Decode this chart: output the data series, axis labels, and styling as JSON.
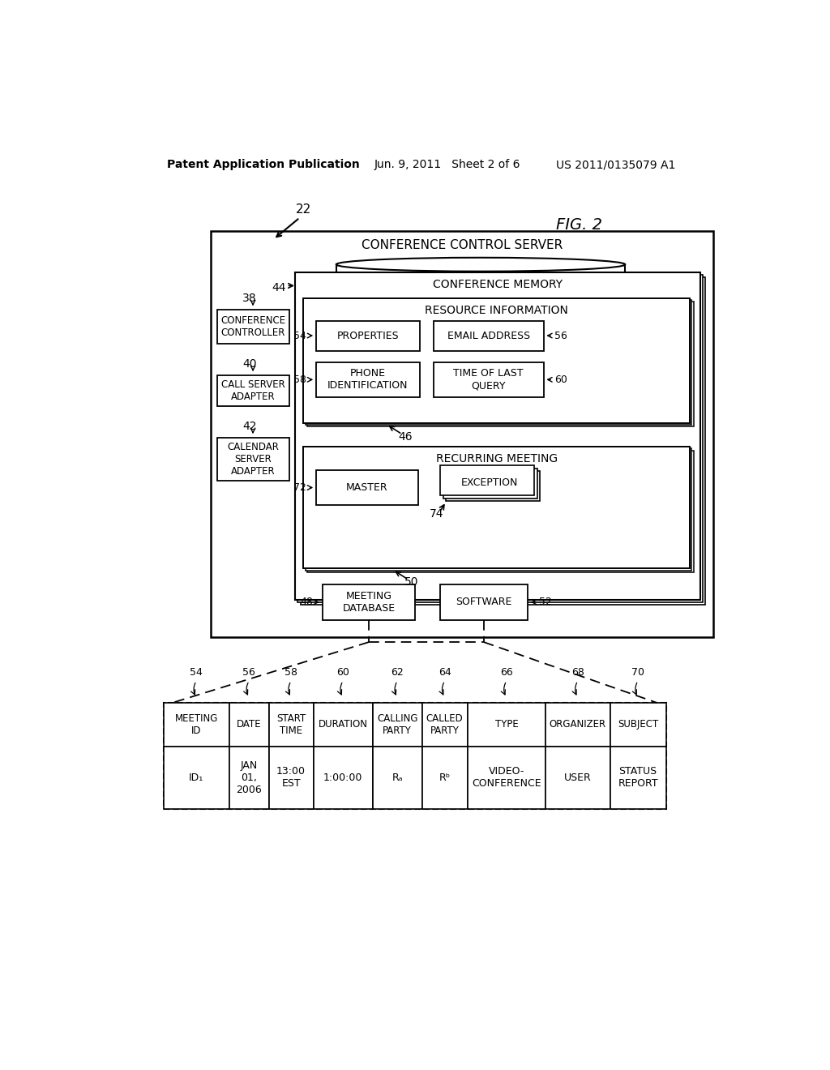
{
  "bg_color": "#ffffff",
  "header_left": "Patent Application Publication",
  "header_mid": "Jun. 9, 2011   Sheet 2 of 6",
  "header_right": "US 2011/0135079 A1",
  "fig_label": "FIG. 2",
  "fig_num": "22",
  "diagram": {
    "conference_server_label": "CONFERENCE CONTROL SERVER",
    "conference_memory_label": "CONFERENCE MEMORY",
    "conference_memory_num": "44",
    "resource_info_label": "RESOURCE INFORMATION",
    "resource_info_num": "46",
    "properties_label": "PROPERTIES",
    "properties_num": "54",
    "email_label": "EMAIL ADDRESS",
    "email_num": "56",
    "phone_label": "PHONE\nIDENTIFICATION",
    "phone_num": "58",
    "time_label": "TIME OF LAST\nQUERY",
    "time_num": "60",
    "recurring_label": "RECURRING MEETING",
    "master_label": "MASTER",
    "master_num": "72",
    "exception_label": "EXCEPTION",
    "exception_num": "74",
    "meeting_db_label": "MEETING\nDATABASE",
    "meeting_db_num": "48",
    "software_label": "SOFTWARE",
    "software_num": "52",
    "conn_num": "50",
    "conference_ctrl_label": "CONFERENCE\nCONTROLLER",
    "conference_ctrl_num": "38",
    "call_server_label": "CALL SERVER\nADAPTER",
    "call_server_num": "40",
    "calendar_label": "CALENDAR\nSERVER\nADAPTER",
    "calendar_num": "42"
  },
  "table": {
    "col_nums": [
      "54",
      "56",
      "58",
      "60",
      "62",
      "64",
      "66",
      "68",
      "70"
    ],
    "headers": [
      "MEETING\nID",
      "DATE",
      "START\nTIME",
      "DURATION",
      "CALLING\nPARTY",
      "CALLED\nPARTY",
      "TYPE",
      "ORGANIZER",
      "SUBJECT"
    ],
    "row1": [
      "ID₁",
      "JAN\n01,\n2006",
      "13:00\nEST",
      "1:00:00",
      "Rₐ",
      "Rᵇ",
      "VIDEO-\nCONFERENCE",
      "USER",
      "STATUS\nREPORT"
    ],
    "col_widths_rel": [
      80,
      48,
      54,
      72,
      60,
      55,
      95,
      78,
      68
    ]
  }
}
